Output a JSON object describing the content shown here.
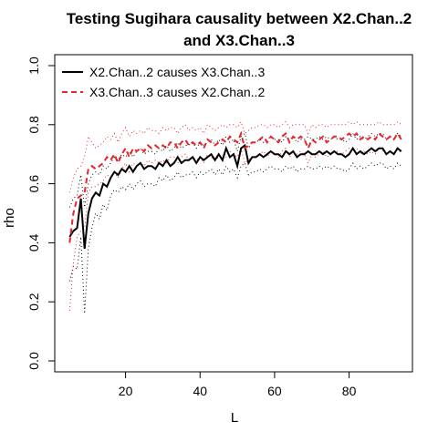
{
  "chart_data": {
    "type": "line",
    "title": "Testing Sugihara causality between  X2.Chan..2",
    "title_line2": "and X3.Chan..3",
    "xlabel": "L",
    "ylabel": "rho",
    "xlim": [
      1,
      97
    ],
    "ylim": [
      0,
      1
    ],
    "x_ticks": [
      20,
      40,
      60,
      80
    ],
    "y_ticks": [
      0.0,
      0.2,
      0.4,
      0.6,
      0.8,
      1.0
    ],
    "y_tick_labels": [
      "0.0",
      "0.2",
      "0.4",
      "0.6",
      "0.8",
      "1.0"
    ],
    "grid": false,
    "legend_position": "top-left",
    "x": [
      5,
      6,
      7,
      8,
      9,
      10,
      11,
      12,
      13,
      14,
      15,
      16,
      17,
      18,
      19,
      20,
      21,
      22,
      23,
      24,
      25,
      26,
      27,
      28,
      29,
      30,
      31,
      32,
      33,
      34,
      35,
      36,
      37,
      38,
      39,
      40,
      41,
      42,
      43,
      44,
      45,
      46,
      47,
      48,
      49,
      50,
      51,
      52,
      53,
      54,
      55,
      56,
      57,
      58,
      59,
      60,
      61,
      62,
      63,
      64,
      65,
      66,
      67,
      68,
      69,
      70,
      71,
      72,
      73,
      74,
      75,
      76,
      77,
      78,
      79,
      80,
      81,
      82,
      83,
      84,
      85,
      86,
      87,
      88,
      89,
      90,
      91,
      92,
      93,
      94
    ],
    "series": [
      {
        "name": "X2.Chan..2 causes X3.Chan..3",
        "color": "#000000",
        "dash": "solid",
        "values": [
          0.42,
          0.44,
          0.45,
          0.55,
          0.38,
          0.5,
          0.55,
          0.57,
          0.56,
          0.6,
          0.59,
          0.62,
          0.64,
          0.63,
          0.65,
          0.64,
          0.66,
          0.64,
          0.66,
          0.67,
          0.65,
          0.66,
          0.66,
          0.65,
          0.67,
          0.66,
          0.68,
          0.66,
          0.67,
          0.69,
          0.67,
          0.68,
          0.68,
          0.69,
          0.67,
          0.69,
          0.68,
          0.69,
          0.7,
          0.68,
          0.7,
          0.68,
          0.72,
          0.69,
          0.7,
          0.66,
          0.72,
          0.73,
          0.67,
          0.69,
          0.69,
          0.7,
          0.69,
          0.7,
          0.71,
          0.7,
          0.7,
          0.69,
          0.71,
          0.7,
          0.71,
          0.69,
          0.7,
          0.7,
          0.71,
          0.7,
          0.7,
          0.71,
          0.7,
          0.71,
          0.7,
          0.71,
          0.7,
          0.7,
          0.69,
          0.7,
          0.72,
          0.7,
          0.71,
          0.7,
          0.71,
          0.72,
          0.71,
          0.72,
          0.72,
          0.7,
          0.71,
          0.7,
          0.72,
          0.71
        ]
      },
      {
        "name": "X3.Chan..3 causes X2.Chan..2",
        "color": "#e3262c",
        "dash": "dashed",
        "values": [
          0.4,
          0.5,
          0.55,
          0.56,
          0.57,
          0.65,
          0.66,
          0.65,
          0.66,
          0.67,
          0.69,
          0.68,
          0.7,
          0.67,
          0.7,
          0.72,
          0.69,
          0.72,
          0.71,
          0.72,
          0.71,
          0.73,
          0.72,
          0.73,
          0.72,
          0.73,
          0.72,
          0.74,
          0.74,
          0.72,
          0.74,
          0.75,
          0.73,
          0.74,
          0.73,
          0.74,
          0.72,
          0.75,
          0.74,
          0.73,
          0.74,
          0.75,
          0.74,
          0.76,
          0.75,
          0.74,
          0.77,
          0.72,
          0.73,
          0.74,
          0.74,
          0.75,
          0.76,
          0.74,
          0.76,
          0.75,
          0.74,
          0.76,
          0.77,
          0.74,
          0.76,
          0.75,
          0.76,
          0.75,
          0.72,
          0.75,
          0.74,
          0.75,
          0.76,
          0.74,
          0.75,
          0.76,
          0.76,
          0.75,
          0.76,
          0.77,
          0.76,
          0.77,
          0.75,
          0.76,
          0.75,
          0.76,
          0.75,
          0.77,
          0.76,
          0.75,
          0.76,
          0.75,
          0.77,
          0.75
        ]
      }
    ],
    "bands": [
      {
        "color": "#000000",
        "lower": [
          0.27,
          0.32,
          0.31,
          0.42,
          0.16,
          0.38,
          0.45,
          0.5,
          0.48,
          0.53,
          0.51,
          0.56,
          0.58,
          0.57,
          0.59,
          0.58,
          0.6,
          0.58,
          0.6,
          0.61,
          0.59,
          0.6,
          0.6,
          0.59,
          0.62,
          0.61,
          0.63,
          0.61,
          0.62,
          0.64,
          0.62,
          0.63,
          0.63,
          0.64,
          0.62,
          0.64,
          0.63,
          0.64,
          0.65,
          0.63,
          0.65,
          0.63,
          0.66,
          0.64,
          0.65,
          0.62,
          0.66,
          0.67,
          0.63,
          0.64,
          0.64,
          0.65,
          0.64,
          0.65,
          0.66,
          0.65,
          0.65,
          0.64,
          0.66,
          0.65,
          0.66,
          0.64,
          0.65,
          0.65,
          0.66,
          0.65,
          0.65,
          0.66,
          0.65,
          0.66,
          0.65,
          0.66,
          0.65,
          0.65,
          0.64,
          0.65,
          0.67,
          0.65,
          0.66,
          0.65,
          0.66,
          0.67,
          0.66,
          0.67,
          0.67,
          0.65,
          0.66,
          0.65,
          0.67,
          0.66
        ],
        "upper": [
          0.52,
          0.55,
          0.56,
          0.63,
          0.52,
          0.6,
          0.63,
          0.64,
          0.63,
          0.66,
          0.65,
          0.67,
          0.69,
          0.68,
          0.7,
          0.69,
          0.71,
          0.69,
          0.71,
          0.72,
          0.7,
          0.71,
          0.71,
          0.7,
          0.72,
          0.71,
          0.73,
          0.71,
          0.72,
          0.74,
          0.72,
          0.73,
          0.73,
          0.74,
          0.72,
          0.74,
          0.73,
          0.74,
          0.75,
          0.73,
          0.75,
          0.73,
          0.76,
          0.74,
          0.75,
          0.71,
          0.76,
          0.77,
          0.72,
          0.74,
          0.74,
          0.75,
          0.74,
          0.75,
          0.76,
          0.75,
          0.75,
          0.74,
          0.76,
          0.75,
          0.76,
          0.74,
          0.75,
          0.75,
          0.76,
          0.75,
          0.75,
          0.76,
          0.75,
          0.76,
          0.75,
          0.76,
          0.75,
          0.75,
          0.74,
          0.75,
          0.77,
          0.75,
          0.76,
          0.75,
          0.76,
          0.77,
          0.76,
          0.77,
          0.77,
          0.75,
          0.76,
          0.75,
          0.77,
          0.76
        ]
      },
      {
        "color": "#e3262c",
        "lower": [
          0.17,
          0.33,
          0.42,
          0.44,
          0.45,
          0.57,
          0.59,
          0.59,
          0.6,
          0.61,
          0.63,
          0.62,
          0.64,
          0.62,
          0.65,
          0.67,
          0.64,
          0.67,
          0.66,
          0.67,
          0.66,
          0.68,
          0.67,
          0.68,
          0.67,
          0.68,
          0.67,
          0.69,
          0.69,
          0.67,
          0.69,
          0.7,
          0.68,
          0.69,
          0.68,
          0.69,
          0.67,
          0.7,
          0.69,
          0.68,
          0.69,
          0.7,
          0.69,
          0.71,
          0.7,
          0.69,
          0.72,
          0.67,
          0.68,
          0.69,
          0.69,
          0.7,
          0.71,
          0.69,
          0.71,
          0.7,
          0.69,
          0.71,
          0.72,
          0.69,
          0.71,
          0.7,
          0.71,
          0.7,
          0.67,
          0.7,
          0.69,
          0.7,
          0.71,
          0.69,
          0.7,
          0.71,
          0.71,
          0.7,
          0.71,
          0.72,
          0.71,
          0.72,
          0.7,
          0.71,
          0.7,
          0.71,
          0.7,
          0.72,
          0.71,
          0.7,
          0.71,
          0.7,
          0.72,
          0.7
        ],
        "upper": [
          0.57,
          0.62,
          0.65,
          0.66,
          0.69,
          0.76,
          0.74,
          0.72,
          0.73,
          0.74,
          0.76,
          0.75,
          0.77,
          0.74,
          0.77,
          0.79,
          0.76,
          0.78,
          0.77,
          0.78,
          0.77,
          0.79,
          0.78,
          0.78,
          0.77,
          0.79,
          0.78,
          0.79,
          0.79,
          0.77,
          0.79,
          0.8,
          0.78,
          0.79,
          0.78,
          0.79,
          0.77,
          0.8,
          0.79,
          0.78,
          0.79,
          0.8,
          0.79,
          0.8,
          0.8,
          0.79,
          0.81,
          0.77,
          0.78,
          0.79,
          0.79,
          0.8,
          0.8,
          0.79,
          0.8,
          0.8,
          0.79,
          0.8,
          0.81,
          0.79,
          0.8,
          0.8,
          0.8,
          0.8,
          0.77,
          0.8,
          0.79,
          0.8,
          0.8,
          0.79,
          0.8,
          0.8,
          0.8,
          0.8,
          0.8,
          0.81,
          0.8,
          0.81,
          0.8,
          0.8,
          0.8,
          0.8,
          0.8,
          0.81,
          0.8,
          0.8,
          0.8,
          0.8,
          0.81,
          0.8
        ]
      }
    ]
  }
}
